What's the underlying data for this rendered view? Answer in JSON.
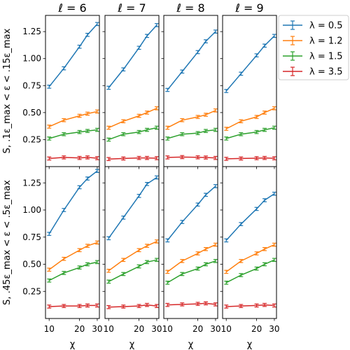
{
  "chart_data": {
    "type": "line",
    "layout": "2x4 grid of subplots",
    "columns": [
      "ℓ = 6",
      "ℓ = 7",
      "ℓ = 8",
      "ℓ = 9"
    ],
    "row_ylabels": [
      "S, .1ε_max < ε < .15ε_max",
      "S, .45ε_max < ε < .5ε_max"
    ],
    "xlabel": "χ",
    "x_scale": "log",
    "xlim": [
      9.2,
      31.5
    ],
    "x_ticks": [
      10,
      20,
      30
    ],
    "ylim": [
      0.0,
      1.4
    ],
    "y_ticks": [
      0.25,
      0.5,
      0.75,
      1.0,
      1.25
    ],
    "y_tick_labels": [
      "0.25",
      "0.50",
      "0.75",
      "1.00",
      "1.25"
    ],
    "grid": false,
    "legend_placement": "outside-right",
    "error_bars": true,
    "x": [
      10,
      14,
      20,
      24,
      30
    ],
    "series_meta": [
      {
        "name": "λ = 0.5",
        "color": "#1f77b4"
      },
      {
        "name": "λ = 1.2",
        "color": "#ff7f0e"
      },
      {
        "name": "λ = 1.5",
        "color": "#2ca02c"
      },
      {
        "name": "λ = 3.5",
        "color": "#d62728"
      }
    ],
    "panels": [
      [
        {
          "series": [
            {
              "values": [
                0.74,
                0.91,
                1.11,
                1.22,
                1.32
              ]
            },
            {
              "values": [
                0.37,
                0.43,
                0.47,
                0.49,
                0.51
              ]
            },
            {
              "values": [
                0.26,
                0.3,
                0.32,
                0.33,
                0.34
              ]
            },
            {
              "values": [
                0.075,
                0.085,
                0.08,
                0.085,
                0.078
              ]
            }
          ]
        },
        {
          "series": [
            {
              "values": [
                0.73,
                0.9,
                1.1,
                1.21,
                1.31
              ]
            },
            {
              "values": [
                0.36,
                0.42,
                0.47,
                0.5,
                0.54
              ]
            },
            {
              "values": [
                0.25,
                0.3,
                0.32,
                0.34,
                0.36
              ]
            },
            {
              "values": [
                0.07,
                0.075,
                0.08,
                0.08,
                0.078
              ]
            }
          ]
        },
        {
          "series": [
            {
              "values": [
                0.71,
                0.88,
                1.06,
                1.16,
                1.25
              ]
            },
            {
              "values": [
                0.36,
                0.43,
                0.46,
                0.48,
                0.52
              ]
            },
            {
              "values": [
                0.26,
                0.3,
                0.31,
                0.33,
                0.34
              ]
            },
            {
              "values": [
                0.085,
                0.088,
                0.086,
                0.084,
                0.08
              ]
            }
          ]
        },
        {
          "series": [
            {
              "values": [
                0.7,
                0.86,
                1.03,
                1.12,
                1.21
              ]
            },
            {
              "values": [
                0.35,
                0.42,
                0.46,
                0.5,
                0.54
              ]
            },
            {
              "values": [
                0.26,
                0.3,
                0.32,
                0.34,
                0.36
              ]
            },
            {
              "values": [
                0.072,
                0.075,
                0.078,
                0.08,
                0.077
              ]
            }
          ]
        }
      ],
      [
        {
          "series": [
            {
              "values": [
                0.78,
                1.0,
                1.21,
                1.29,
                1.36
              ]
            },
            {
              "values": [
                0.45,
                0.55,
                0.63,
                0.67,
                0.7
              ]
            },
            {
              "values": [
                0.35,
                0.42,
                0.47,
                0.5,
                0.52
              ]
            },
            {
              "values": [
                0.11,
                0.115,
                0.115,
                0.12,
                0.12
              ]
            }
          ]
        },
        {
          "series": [
            {
              "values": [
                0.74,
                0.93,
                1.13,
                1.24,
                1.3
              ]
            },
            {
              "values": [
                0.44,
                0.54,
                0.63,
                0.67,
                0.71
              ]
            },
            {
              "values": [
                0.34,
                0.41,
                0.48,
                0.52,
                0.54
              ]
            },
            {
              "values": [
                0.105,
                0.11,
                0.115,
                0.125,
                0.115
              ]
            }
          ]
        },
        {
          "series": [
            {
              "values": [
                0.72,
                0.89,
                1.05,
                1.14,
                1.22
              ]
            },
            {
              "values": [
                0.43,
                0.53,
                0.6,
                0.64,
                0.68
              ]
            },
            {
              "values": [
                0.33,
                0.41,
                0.46,
                0.5,
                0.53
              ]
            },
            {
              "values": [
                0.125,
                0.13,
                0.135,
                0.14,
                0.13
              ]
            }
          ]
        },
        {
          "series": [
            {
              "values": [
                0.72,
                0.87,
                1.01,
                1.09,
                1.15
              ]
            },
            {
              "values": [
                0.43,
                0.53,
                0.6,
                0.64,
                0.68
              ]
            },
            {
              "values": [
                0.33,
                0.4,
                0.46,
                0.5,
                0.54
              ]
            },
            {
              "values": [
                0.11,
                0.115,
                0.12,
                0.125,
                0.12
              ]
            }
          ]
        }
      ]
    ]
  }
}
